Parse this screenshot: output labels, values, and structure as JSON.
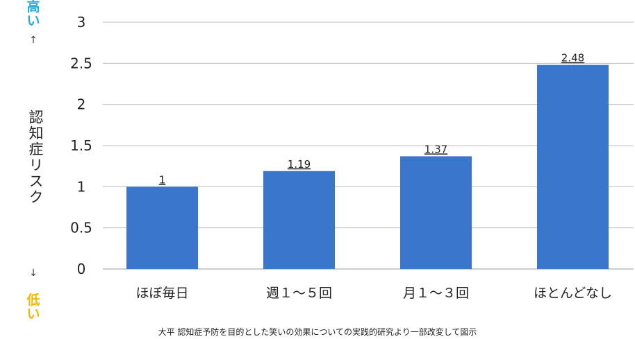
{
  "chart_data": {
    "type": "bar",
    "categories": [
      "ほぼ毎日",
      "週１～５回",
      "月１～３回",
      "ほとんどなし"
    ],
    "values": [
      1,
      1.19,
      1.37,
      2.48
    ],
    "data_labels": [
      "1",
      "1.19",
      "1.37",
      "2.48"
    ],
    "ylabel": "認知症リスク",
    "ylim": [
      0,
      3
    ],
    "yticks": [
      "0",
      "0.5",
      "1",
      "1.5",
      "2",
      "2.5",
      "3"
    ],
    "ytick_values": [
      0,
      0.5,
      1,
      1.5,
      2,
      2.5,
      3
    ],
    "grid": true,
    "bar_color": "#3a76cc"
  },
  "side": {
    "high": "高い",
    "low": "低い",
    "arrow_up": "↑",
    "arrow_down": "↓",
    "color": "#f2b705",
    "high_color": "#2aa6e0"
  },
  "source_note": "大平 認知症予防を目的とした笑いの効果についての実践的研究より一部改変して図示"
}
